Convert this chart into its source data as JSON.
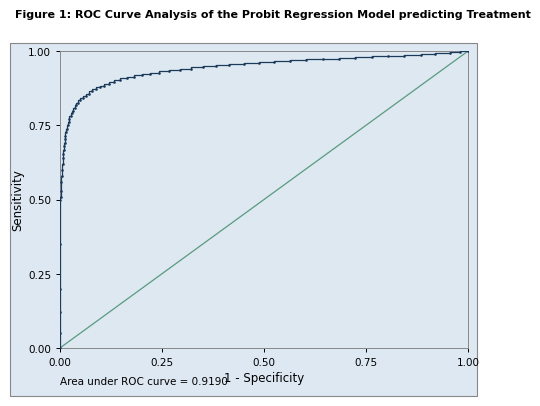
{
  "title": "Figure 1: ROC Curve Analysis of the Probit Regression Model predicting Treatment",
  "xlabel": "1 - Specificity",
  "ylabel": "Sensitivity",
  "auc_text": "Area under ROC curve = 0.9190",
  "roc_color": "#1b3a5c",
  "diag_color": "#5a9a80",
  "outer_bg": "#f0f0f0",
  "plot_bg_color": "#dde8f0",
  "border_color": "#aaaaaa",
  "xlim": [
    0.0,
    1.0
  ],
  "ylim": [
    0.0,
    1.0
  ],
  "xticks": [
    0.0,
    0.25,
    0.5,
    0.75,
    1.0
  ],
  "yticks": [
    0.0,
    0.25,
    0.5,
    0.75,
    1.0
  ],
  "title_fontsize": 8.0,
  "axis_label_fontsize": 8.5,
  "tick_fontsize": 7.5,
  "auc_fontsize": 7.5,
  "fpr_points": [
    0.0,
    0.0,
    0.0,
    0.0,
    0.0,
    0.0,
    0.002,
    0.002,
    0.003,
    0.004,
    0.005,
    0.006,
    0.007,
    0.008,
    0.009,
    0.01,
    0.011,
    0.012,
    0.013,
    0.015,
    0.017,
    0.019,
    0.021,
    0.023,
    0.026,
    0.029,
    0.032,
    0.036,
    0.04,
    0.045,
    0.05,
    0.056,
    0.063,
    0.07,
    0.078,
    0.087,
    0.097,
    0.108,
    0.12,
    0.133,
    0.148,
    0.164,
    0.181,
    0.2,
    0.221,
    0.243,
    0.267,
    0.293,
    0.32,
    0.35,
    0.382,
    0.415,
    0.45,
    0.487,
    0.525,
    0.564,
    0.604,
    0.644,
    0.684,
    0.724,
    0.764,
    0.804,
    0.844,
    0.884,
    0.92,
    0.955,
    0.98,
    1.0
  ],
  "tpr_points": [
    0.0,
    0.05,
    0.12,
    0.2,
    0.35,
    0.5,
    0.51,
    0.53,
    0.56,
    0.58,
    0.6,
    0.62,
    0.64,
    0.655,
    0.668,
    0.68,
    0.692,
    0.703,
    0.714,
    0.726,
    0.738,
    0.75,
    0.76,
    0.77,
    0.78,
    0.79,
    0.799,
    0.808,
    0.817,
    0.826,
    0.834,
    0.842,
    0.85,
    0.857,
    0.864,
    0.871,
    0.878,
    0.884,
    0.89,
    0.896,
    0.902,
    0.908,
    0.913,
    0.918,
    0.923,
    0.928,
    0.933,
    0.937,
    0.941,
    0.945,
    0.949,
    0.953,
    0.957,
    0.96,
    0.963,
    0.966,
    0.969,
    0.972,
    0.975,
    0.977,
    0.98,
    0.982,
    0.985,
    0.988,
    0.991,
    0.994,
    0.997,
    1.0
  ]
}
